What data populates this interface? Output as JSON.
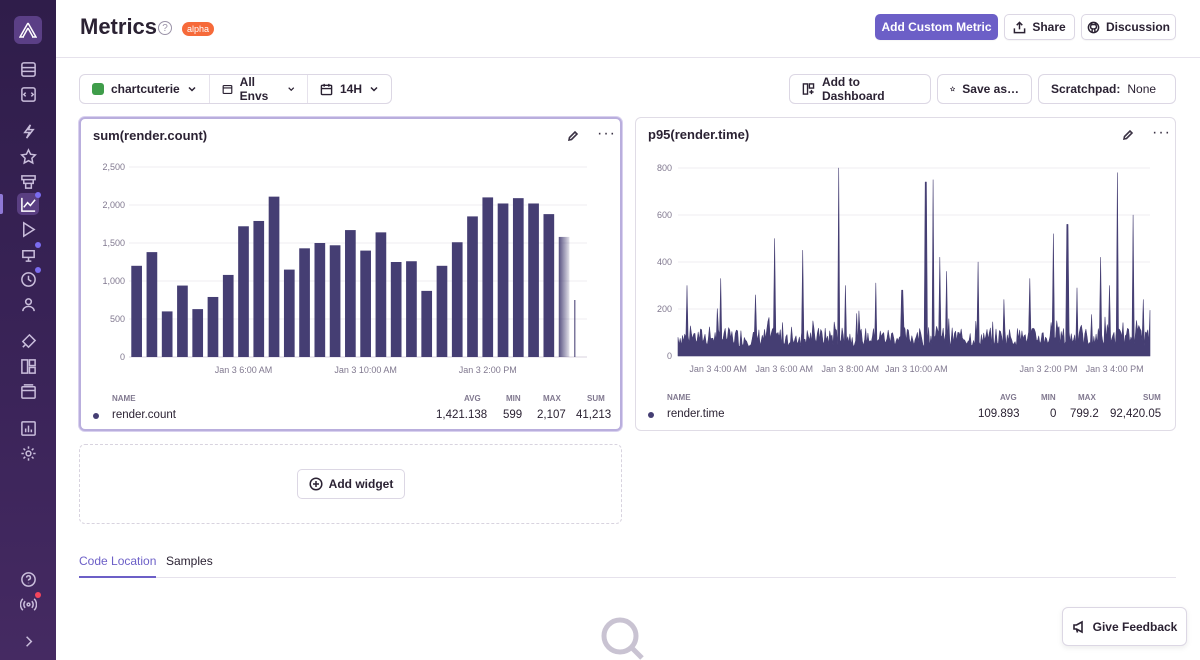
{
  "header": {
    "title": "Metrics",
    "help": "?",
    "badge": "alpha",
    "add_custom_metric": "Add Custom Metric",
    "share": "Share",
    "discussion": "Discussion"
  },
  "filters": {
    "project": "chartcuterie",
    "envs": "All Envs",
    "period": "14H"
  },
  "toolbar": {
    "add_to_dashboard": "Add to Dashboard",
    "save_as": "Save as…",
    "scratchpad_label": "Scratchpad:",
    "scratchpad_value": "None"
  },
  "widgets": [
    {
      "title": "sum(render.count)",
      "legend": {
        "headers": [
          "NAME",
          "AVG",
          "MIN",
          "MAX",
          "SUM"
        ],
        "name": "render.count",
        "avg": "1,421.138",
        "min": "599",
        "max": "2,107",
        "sum": "41,213"
      },
      "chart_data": {
        "type": "bar",
        "ylim": [
          0,
          2500
        ],
        "yticks": [
          "0",
          "500",
          "1,000",
          "1,500",
          "2,000",
          "2,500"
        ],
        "xticks": [
          {
            "label": "Jan 3 6:00 AM",
            "index": 7.5
          },
          {
            "label": "Jan 3 10:00 AM",
            "index": 15.5
          },
          {
            "label": "Jan 3 2:00 PM",
            "index": 23.5
          }
        ],
        "values": [
          1200,
          1380,
          600,
          940,
          630,
          790,
          1080,
          1720,
          1790,
          2110,
          1150,
          1430,
          1500,
          1470,
          1670,
          1400,
          1640,
          1250,
          1260,
          870,
          1200,
          1510,
          1850,
          2100,
          2020,
          2090,
          2020,
          1880,
          1580,
          750
        ],
        "faded_from_index": 28,
        "color": "#453e73"
      }
    },
    {
      "title": "p95(render.time)",
      "legend": {
        "headers": [
          "NAME",
          "AVG",
          "MIN",
          "MAX",
          "SUM"
        ],
        "name": "render.time",
        "avg": "109.893",
        "min": "0",
        "max": "799.2",
        "sum": "92,420.05"
      },
      "chart_data": {
        "type": "area",
        "ylim": [
          0,
          800
        ],
        "yticks": [
          "0",
          "200",
          "400",
          "600",
          "800"
        ],
        "xticks": [
          {
            "label": "Jan 3 4:00 AM",
            "frac": 0.085
          },
          {
            "label": "Jan 3 6:00 AM",
            "frac": 0.225
          },
          {
            "label": "Jan 3 8:00 AM",
            "frac": 0.365
          },
          {
            "label": "Jan 3 10:00 AM",
            "frac": 0.505
          },
          {
            "label": "Jan 3 2:00 PM",
            "frac": 0.785
          },
          {
            "label": "Jan 3 4:00 PM",
            "frac": 0.925
          }
        ],
        "baseline": 110,
        "spikes": [
          {
            "frac": 0.02,
            "value": 300
          },
          {
            "frac": 0.09,
            "value": 330
          },
          {
            "frac": 0.165,
            "value": 260
          },
          {
            "frac": 0.205,
            "value": 500
          },
          {
            "frac": 0.265,
            "value": 450
          },
          {
            "frac": 0.34,
            "value": 800
          },
          {
            "frac": 0.355,
            "value": 300
          },
          {
            "frac": 0.42,
            "value": 310
          },
          {
            "frac": 0.475,
            "value": 280
          },
          {
            "frac": 0.525,
            "value": 740
          },
          {
            "frac": 0.54,
            "value": 750
          },
          {
            "frac": 0.555,
            "value": 420
          },
          {
            "frac": 0.57,
            "value": 360
          },
          {
            "frac": 0.635,
            "value": 400
          },
          {
            "frac": 0.69,
            "value": 240
          },
          {
            "frac": 0.745,
            "value": 330
          },
          {
            "frac": 0.795,
            "value": 520
          },
          {
            "frac": 0.825,
            "value": 560
          },
          {
            "frac": 0.845,
            "value": 290
          },
          {
            "frac": 0.895,
            "value": 420
          },
          {
            "frac": 0.915,
            "value": 300
          },
          {
            "frac": 0.93,
            "value": 780
          },
          {
            "frac": 0.965,
            "value": 600
          },
          {
            "frac": 0.985,
            "value": 240
          }
        ],
        "color": "#453e73"
      }
    }
  ],
  "add_widget": "Add widget",
  "tabs": [
    "Code Location",
    "Samples"
  ],
  "feedback": "Give Feedback"
}
